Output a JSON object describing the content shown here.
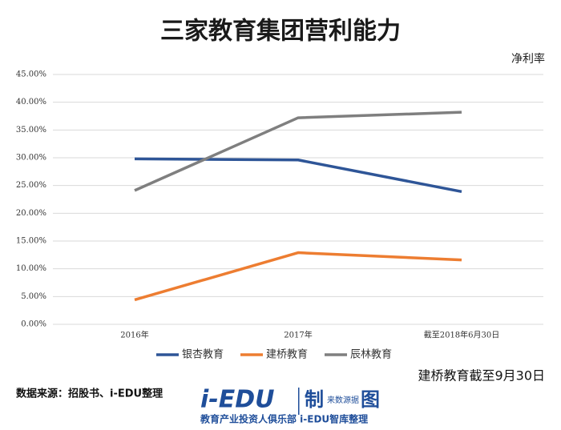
{
  "chart_data": {
    "type": "line",
    "title": "三家教育集团营利能力",
    "subtitle": "净利率",
    "categories": [
      "2016年",
      "2017年",
      "截至2018年6月30日"
    ],
    "series": [
      {
        "name": "银杏教育",
        "color": "#2e5597",
        "values": [
          29.8,
          29.6,
          23.9
        ]
      },
      {
        "name": "建桥教育",
        "color": "#ed7d31",
        "values": [
          4.4,
          12.9,
          11.6
        ]
      },
      {
        "name": "辰林教育",
        "color": "#7f7f7f",
        "values": [
          24.1,
          37.2,
          38.2
        ]
      }
    ],
    "ylim": [
      0,
      45
    ],
    "yticks": [
      {
        "value": 0,
        "label": "0.00%"
      },
      {
        "value": 5,
        "label": "5.00%"
      },
      {
        "value": 10,
        "label": "10.00%"
      },
      {
        "value": 15,
        "label": "15.00%"
      },
      {
        "value": 20,
        "label": "20.00%"
      },
      {
        "value": 25,
        "label": "25.00%"
      },
      {
        "value": 30,
        "label": "30.00%"
      },
      {
        "value": 35,
        "label": "35.00%"
      },
      {
        "value": 40,
        "label": "40.00%"
      },
      {
        "value": 45,
        "label": "45.00%"
      }
    ],
    "grid": true,
    "legend": "bottom",
    "note": "建桥教育截至9月30日",
    "source": "数据来源：招股书、i-EDU整理",
    "logo": {
      "brand": "i-EDU",
      "mark": "制",
      "tag": "来数源据",
      "icon": "图",
      "caption": "教育产业投资人俱乐部  i-EDU智库整理"
    }
  }
}
